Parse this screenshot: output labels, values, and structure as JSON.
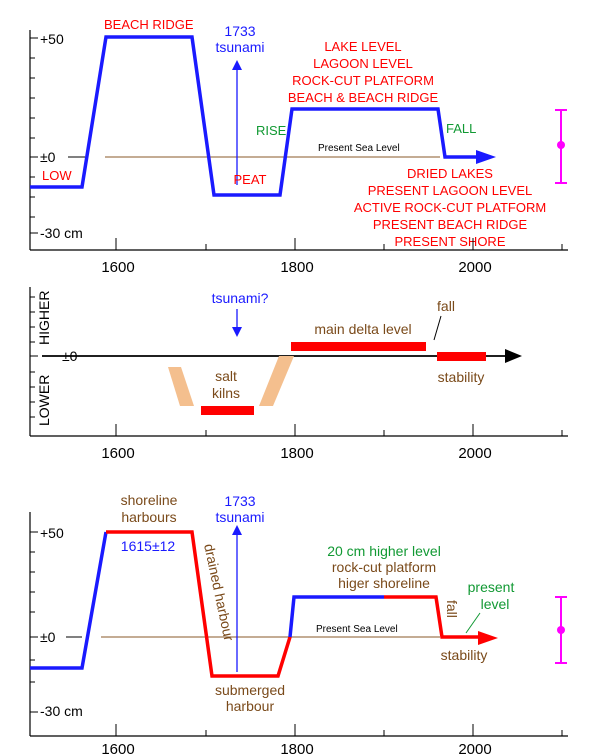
{
  "colors": {
    "blue": "#1a1aff",
    "red": "#ff0000",
    "green": "#119933",
    "brown": "#7a4a1a",
    "magenta": "#ff00ff",
    "black": "#000000",
    "sea_line": "#8a5a2a",
    "kiln": "#f4bf8e"
  },
  "panel_top": {
    "y_tick_labels": [
      "+50",
      "±0",
      "-30 cm"
    ],
    "low_label": "LOW",
    "beach_ridge": "BEACH RIDGE",
    "tsunami_year": "1733",
    "tsunami_word": "tsunami",
    "peat": "PEAT",
    "rise": "RISE",
    "fall": "FALL",
    "present_sea_level": "Present Sea Level",
    "upper_stack": [
      "LAKE LEVEL",
      "LAGOON LEVEL",
      "ROCK-CUT PLATFORM",
      "BEACH & BEACH RIDGE"
    ],
    "lower_stack": [
      "DRIED LAKES",
      "PRESENT LAGOON LEVEL",
      "ACTIVE ROCK-CUT PLATFORM",
      "PRESENT BEACH RIDGE",
      "PRESENT SHORE"
    ],
    "x_tick_labels": [
      "1600",
      "1800",
      "2000"
    ]
  },
  "panel_mid": {
    "higher": "HIGHER",
    "lower": "LOWER",
    "zero": "±0",
    "tsunami": "tsunami?",
    "main_delta": "main delta level",
    "fall": "fall",
    "stability": "stability",
    "salt": "salt",
    "kilns": "kilns",
    "x_tick_labels": [
      "1600",
      "1800",
      "2000"
    ]
  },
  "panel_bot": {
    "y_tick_labels": [
      "+50",
      "±0",
      "-30 cm"
    ],
    "shoreline": "shoreline",
    "harbours": "harbours",
    "date": "1615±12",
    "tsunami_year": "1733",
    "tsunami_word": "tsunami",
    "drained_harbour": "drained harbour",
    "submerged": "submerged",
    "harbour": "harbour",
    "higher_level": "20 cm higher level",
    "rock_cut": "rock-cut platform",
    "higher_shoreline": "higer shoreline",
    "present": "present",
    "level": "level",
    "fall": "fall",
    "present_sea_level": "Present Sea Level",
    "stability": "stability",
    "x_tick_labels": [
      "1600",
      "1800",
      "2000"
    ]
  }
}
